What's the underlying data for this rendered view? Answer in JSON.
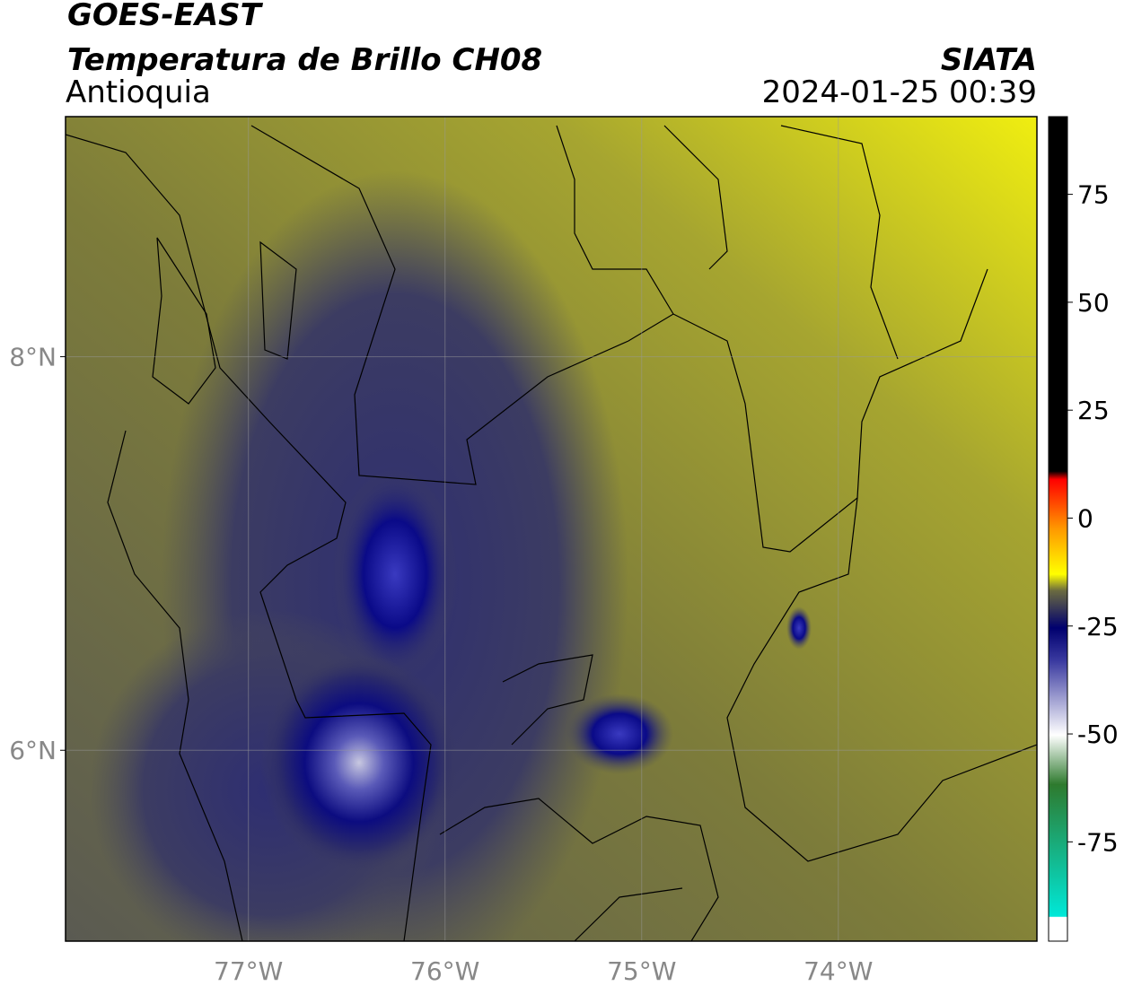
{
  "header": {
    "title": "GOES-EAST",
    "subtitle": "Temperatura de Brillo CH08",
    "region": "Antioquia",
    "source": "SIATA",
    "datetime": "2024-01-25 00:39"
  },
  "map": {
    "lonlim": [
      -77.93,
      -72.99
    ],
    "latlim": [
      5.03,
      9.22
    ],
    "lat_ticks": [
      {
        "value": 8,
        "label": "8°N"
      },
      {
        "value": 6,
        "label": "6°N"
      }
    ],
    "lon_ticks": [
      {
        "value": -77,
        "label": "77°W"
      },
      {
        "value": -76,
        "label": "76°W"
      },
      {
        "value": -75,
        "label": "75°W"
      },
      {
        "value": -74,
        "label": "74°W"
      }
    ],
    "grid": true
  },
  "colorbar": {
    "lim": [
      -98,
      93
    ],
    "ticks": [
      75,
      50,
      25,
      0,
      -25,
      -50,
      -75
    ]
  }
}
